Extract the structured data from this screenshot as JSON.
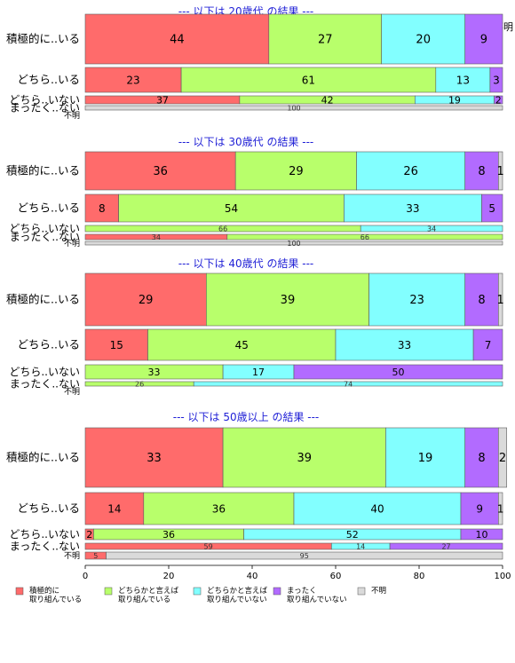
{
  "chart_data": {
    "type": "bar",
    "orientation": "horizontal",
    "stacked": true,
    "xlim": [
      0,
      100
    ],
    "x_ticks": [
      "0",
      "20",
      "40",
      "60",
      "80",
      "100"
    ],
    "grid": false,
    "legend_position": "bottom",
    "top_headers": [
      "積極的に取り組んでいる",
      "どちらかと言えば取..",
      "どちらかと言..",
      "まっ..",
      "不明"
    ],
    "legend": [
      {
        "label": "積極的に\n取り組んでいる",
        "color": "#ff6b6b"
      },
      {
        "label": "どちらかと言えば\n取り組んでいる",
        "color": "#b8ff6b"
      },
      {
        "label": "どちらかと言えば\n取り組んでいない",
        "color": "#82ffff"
      },
      {
        "label": "まったく\n取り組んでいない",
        "color": "#b26bff"
      },
      {
        "label": "不明",
        "color": "#dadada"
      }
    ],
    "colors": [
      "#ff6b6b",
      "#b8ff6b",
      "#82ffff",
      "#b26bff",
      "#dadada"
    ],
    "panels": [
      {
        "title": "--- 以下は 20歳代 の結果 ---",
        "rows": [
          {
            "label": "積極的に..いる",
            "values": [
              44,
              27,
              20,
              9,
              0
            ],
            "size": "large"
          },
          {
            "label": "どちら..いる",
            "values": [
              23,
              61,
              13,
              3,
              0
            ],
            "size": "medium"
          },
          {
            "label": "どちら..いない",
            "values": [
              37,
              42,
              19,
              2,
              0
            ],
            "size": "small"
          },
          {
            "label": "まったく..ない",
            "values": [
              0,
              0,
              0,
              0,
              100
            ],
            "size": "tiny"
          },
          {
            "label": "不明",
            "values": [
              0,
              0,
              0,
              0,
              0
            ],
            "size": "none"
          }
        ]
      },
      {
        "title": "--- 以下は 30歳代 の結果 ---",
        "rows": [
          {
            "label": "積極的に..いる",
            "values": [
              36,
              29,
              26,
              8,
              1
            ],
            "size": "large"
          },
          {
            "label": "どちら..いる",
            "values": [
              8,
              54,
              33,
              5,
              0
            ],
            "size": "medium"
          },
          {
            "label": "どちら..いない",
            "values": [
              0,
              66,
              34,
              0,
              0
            ],
            "size": "tiny"
          },
          {
            "label": "まったく..ない",
            "values": [
              34,
              66,
              0,
              0,
              0
            ],
            "size": "tiny"
          },
          {
            "label": "不明",
            "values": [
              0,
              0,
              0,
              0,
              100
            ],
            "size": "tiny"
          }
        ]
      },
      {
        "title": "--- 以下は 40歳代 の結果 ---",
        "rows": [
          {
            "label": "積極的に..いる",
            "values": [
              29,
              39,
              23,
              8,
              1
            ],
            "size": "large"
          },
          {
            "label": "どちら..いる",
            "values": [
              15,
              45,
              33,
              7,
              0
            ],
            "size": "medium"
          },
          {
            "label": "どちら..いない",
            "values": [
              0,
              33,
              17,
              50,
              0
            ],
            "size": "small"
          },
          {
            "label": "まったく..ない",
            "values": [
              0,
              26,
              74,
              0,
              0
            ],
            "size": "tiny"
          },
          {
            "label": "不明",
            "values": [
              0,
              0,
              0,
              0,
              0
            ],
            "size": "none"
          }
        ]
      },
      {
        "title": "--- 以下は 50歳以上 の結果 ---",
        "rows": [
          {
            "label": "積極的に..いる",
            "values": [
              33,
              39,
              19,
              8,
              2
            ],
            "size": "large"
          },
          {
            "label": "どちら..いる",
            "values": [
              14,
              36,
              40,
              9,
              1
            ],
            "size": "medium"
          },
          {
            "label": "どちら..いない",
            "values": [
              2,
              36,
              52,
              10,
              0
            ],
            "size": "small"
          },
          {
            "label": "まったく..ない",
            "values": [
              59,
              0,
              14,
              27,
              0
            ],
            "size": "tiny"
          },
          {
            "label": "不明",
            "values": [
              5,
              0,
              0,
              0,
              95
            ],
            "size": "tiny"
          }
        ]
      }
    ]
  }
}
